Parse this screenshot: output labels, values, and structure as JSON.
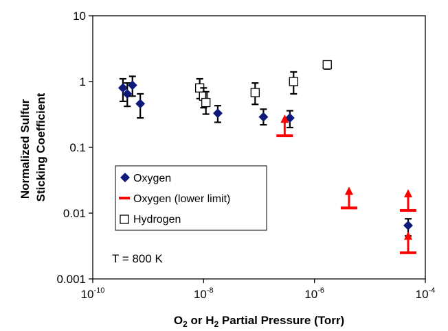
{
  "chart_data": {
    "type": "scatter",
    "xlabel": "O2 or H2 Partial Pressure (Torr)",
    "xlabel_parts": [
      {
        "text": "O",
        "sub": false
      },
      {
        "text": "2",
        "sub": true
      },
      {
        "text": " or H",
        "sub": false
      },
      {
        "text": "2",
        "sub": true
      },
      {
        "text": " Partial Pressure (Torr)",
        "sub": false
      }
    ],
    "ylabel_lines": [
      "Normalized Sulfur",
      "Sticking Coefficient"
    ],
    "xscale": "log",
    "yscale": "log",
    "xlim": [
      1e-10,
      0.0001
    ],
    "ylim": [
      0.001,
      10
    ],
    "x_ticks": [
      {
        "value": 1e-10,
        "base": "10",
        "exp": "-10"
      },
      {
        "value": 1e-08,
        "base": "10",
        "exp": "-8"
      },
      {
        "value": 1e-06,
        "base": "10",
        "exp": "-6"
      },
      {
        "value": 0.0001,
        "base": "10",
        "exp": "-4"
      }
    ],
    "y_ticks": [
      {
        "value": 0.001,
        "label": "0.001"
      },
      {
        "value": 0.01,
        "label": "0.01"
      },
      {
        "value": 0.1,
        "label": "0.1"
      },
      {
        "value": 1,
        "label": "1"
      },
      {
        "value": 10,
        "label": "10"
      }
    ],
    "grid": false,
    "legend_position": "lower-left",
    "annotation": "T = 800 K",
    "series": [
      {
        "name": "Oxygen",
        "marker": "diamond",
        "color": "#0d1a7a",
        "points": [
          {
            "x": 3.5e-10,
            "y": 0.8,
            "ylo": 0.5,
            "yhi": 1.1
          },
          {
            "x": 4.2e-10,
            "y": 0.65,
            "ylo": 0.42,
            "yhi": 0.95
          },
          {
            "x": 5.2e-10,
            "y": 0.88,
            "ylo": 0.6,
            "yhi": 1.2
          },
          {
            "x": 7.2e-10,
            "y": 0.46,
            "ylo": 0.28,
            "yhi": 0.65
          },
          {
            "x": 1.8e-08,
            "y": 0.33,
            "ylo": 0.24,
            "yhi": 0.43
          },
          {
            "x": 1.2e-07,
            "y": 0.29,
            "ylo": 0.22,
            "yhi": 0.38
          },
          {
            "x": 3.6e-07,
            "y": 0.28,
            "ylo": 0.2,
            "yhi": 0.36
          },
          {
            "x": 4.9e-05,
            "y": 0.0065,
            "ylo": 0.0045,
            "yhi": 0.0082
          }
        ]
      },
      {
        "name": "Oxygen (lower limit)",
        "marker": "lower-limit",
        "color": "#ff0000",
        "points": [
          {
            "x": 2.9e-07,
            "y": 0.15
          },
          {
            "x": 4.2e-06,
            "y": 0.012
          },
          {
            "x": 4.9e-05,
            "y": 0.011
          },
          {
            "x": 4.9e-05,
            "y": 0.0025
          }
        ]
      },
      {
        "name": "Hydrogen",
        "marker": "square-open",
        "color": "#000000",
        "points": [
          {
            "x": 8.5e-09,
            "y": 0.8,
            "ylo": 0.55,
            "yhi": 1.1
          },
          {
            "x": 1e-08,
            "y": 0.6,
            "ylo": 0.4,
            "yhi": 0.8
          },
          {
            "x": 1.1e-08,
            "y": 0.48,
            "ylo": 0.32,
            "yhi": 0.7
          },
          {
            "x": 8.5e-08,
            "y": 0.68,
            "ylo": 0.45,
            "yhi": 0.95
          },
          {
            "x": 4.2e-07,
            "y": 1.0,
            "ylo": 0.65,
            "yhi": 1.4
          },
          {
            "x": 1.7e-06,
            "y": 1.8,
            "ylo": 1.55,
            "yhi": 2.05
          }
        ]
      }
    ]
  }
}
